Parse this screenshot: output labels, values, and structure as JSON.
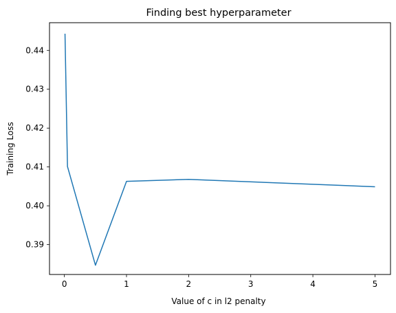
{
  "chart_data": {
    "type": "line",
    "title": "Finding best hyperparameter",
    "xlabel": "Value of c in l2 penalty",
    "ylabel": "Training Loss",
    "x": [
      0.01,
      0.05,
      0.5,
      1,
      2,
      5
    ],
    "series": [
      {
        "values": [
          0.4443,
          0.4101,
          0.3847,
          0.4063,
          0.4068,
          0.4049
        ],
        "color": "#1f77b4"
      }
    ],
    "xlim": [
      -0.2395,
      5.2495
    ],
    "ylim": [
      0.38232,
      0.44713
    ],
    "xticks": [
      0,
      1,
      2,
      3,
      4,
      5
    ],
    "xtick_labels": [
      "0",
      "1",
      "2",
      "3",
      "4",
      "5"
    ],
    "yticks": [
      0.39,
      0.4,
      0.41,
      0.42,
      0.43,
      0.44
    ],
    "ytick_labels": [
      "0.39",
      "0.40",
      "0.41",
      "0.42",
      "0.43",
      "0.44"
    ],
    "grid": false,
    "legend": false
  }
}
